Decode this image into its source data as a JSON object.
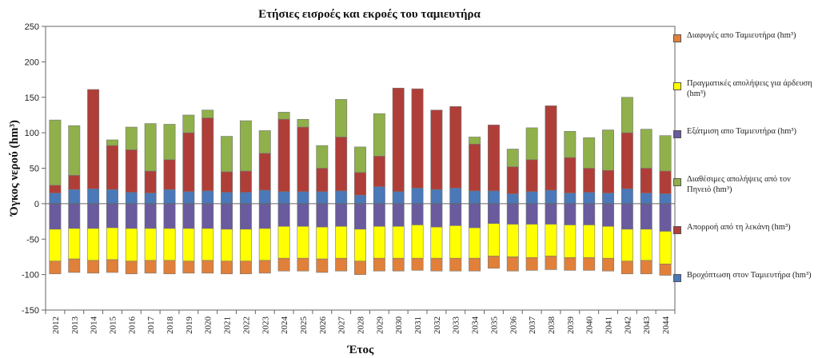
{
  "chart_data": {
    "type": "stacked-bar",
    "title": "Ετήσιες εισροές και εκροές του ταμιευτήρα",
    "xlabel": "Έτος",
    "ylabel": "Όγκος νερού (hm³)",
    "ylim": [
      -150,
      250
    ],
    "yticks": [
      -150,
      -100,
      -50,
      0,
      50,
      100,
      150,
      200,
      250
    ],
    "grid": false,
    "legend_position": "right",
    "categories": [
      "2012",
      "2013",
      "2014",
      "2015",
      "2016",
      "2017",
      "2018",
      "2019",
      "2020",
      "2021",
      "2022",
      "2023",
      "2024",
      "2025",
      "2026",
      "2027",
      "2028",
      "2029",
      "2030",
      "2031",
      "2032",
      "2033",
      "2034",
      "2035",
      "2036",
      "2037",
      "2038",
      "2039",
      "2040",
      "2041",
      "2042",
      "2043",
      "2044"
    ],
    "positive_series": [
      {
        "name": "Βροχόπτωση στον Ταμιευτήρα",
        "legend": "Βροχόπτωση στον Ταμιευτήρα (hm³)",
        "color": "#4a78b8",
        "values": [
          15,
          20,
          21,
          20,
          16,
          15,
          20,
          17,
          18,
          16,
          16,
          19,
          17,
          17,
          17,
          18,
          12,
          24,
          17,
          22,
          20,
          22,
          18,
          18,
          14,
          17,
          19,
          15,
          16,
          15,
          21,
          15,
          14
        ]
      },
      {
        "name": "Απορροή από τη λεκάνη",
        "legend": "Απορροή από τη     λεκάνη (hm³)",
        "color": "#b03e38",
        "values": [
          11,
          20,
          140,
          62,
          60,
          31,
          42,
          83,
          103,
          29,
          30,
          52,
          102,
          91,
          33,
          76,
          32,
          43,
          146,
          140,
          112,
          115,
          66,
          93,
          38,
          45,
          119,
          50,
          34,
          32,
          79,
          35,
          32
        ]
      },
      {
        "name": "Διαθέσιμες απολήψεις από τον Πηνειό",
        "legend": "Διαθέσιμες απολήψεις από τον Πηνειό (hm³)",
        "color": "#8fb04a",
        "values": [
          92,
          70,
          0,
          8,
          32,
          67,
          50,
          25,
          11,
          50,
          71,
          32,
          10,
          11,
          32,
          53,
          36,
          60,
          0,
          0,
          0,
          0,
          10,
          0,
          25,
          45,
          0,
          37,
          43,
          57,
          50,
          55,
          50
        ]
      }
    ],
    "negative_series": [
      {
        "name": "Εξάτμιση απο Ταμιευτήρα",
        "legend": "Εξάτμιση απο Ταμιευτήρα (hm³)",
        "color": "#6a5a9e",
        "values": [
          -36,
          -35,
          -35,
          -34,
          -35,
          -35,
          -35,
          -35,
          -35,
          -36,
          -36,
          -35,
          -32,
          -32,
          -33,
          -32,
          -36,
          -32,
          -32,
          -30,
          -33,
          -31,
          -34,
          -28,
          -29,
          -29,
          -29,
          -30,
          -30,
          -32,
          -36,
          -36,
          -39
        ]
      },
      {
        "name": "Πραγματικές απολήψεις για άρδευση",
        "legend": "Πραγματικές απολήψεις για άρδευση (hm³)",
        "color": "#ffff00",
        "values": [
          -45,
          -43,
          -45,
          -45,
          -46,
          -45,
          -45,
          -46,
          -45,
          -45,
          -45,
          -45,
          -45,
          -45,
          -45,
          -45,
          -45,
          -45,
          -45,
          -47,
          -44,
          -46,
          -43,
          -46,
          -46,
          -47,
          -45,
          -46,
          -46,
          -45,
          -45,
          -44,
          -46
        ]
      },
      {
        "name": "Διαφυγές απο Ταμιευτήρα",
        "legend": "Διαφυγές απο Ταμιευτήρα (hm³)",
        "color": "#e0803a",
        "values": [
          -18,
          -19,
          -18,
          -18,
          -18,
          -18,
          -19,
          -17,
          -18,
          -18,
          -18,
          -18,
          -18,
          -18,
          -19,
          -18,
          -19,
          -18,
          -18,
          -17,
          -18,
          -18,
          -18,
          -17,
          -20,
          -18,
          -19,
          -18,
          -18,
          -18,
          -18,
          -19,
          -16
        ]
      }
    ],
    "legend_order": [
      "Διαφυγές απο Ταμιευτήρα",
      "Πραγματικές απολήψεις για άρδευση",
      "Εξάτμιση απο Ταμιευτήρα",
      "Διαθέσιμες απολήψεις από τον Πηνειό",
      "Απορροή από τη λεκάνη",
      "Βροχόπτωση στον Ταμιευτήρα"
    ]
  }
}
